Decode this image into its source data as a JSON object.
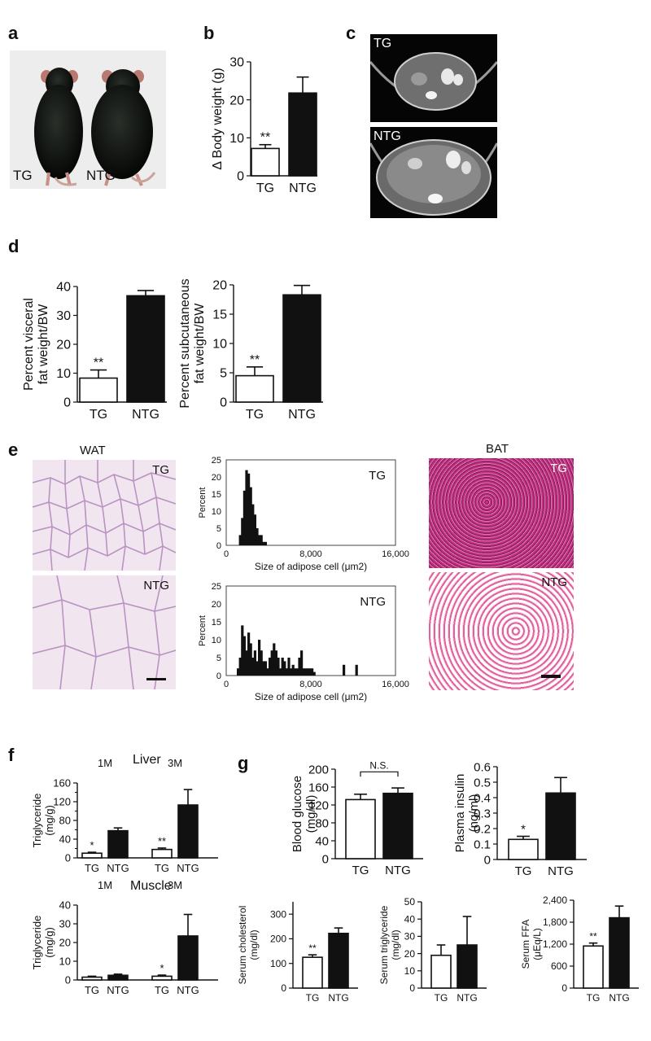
{
  "panels": {
    "a": {
      "letter": "a",
      "label_tg": "TG",
      "label_ntg": "NTG"
    },
    "b": {
      "letter": "b"
    },
    "c": {
      "letter": "c",
      "label_tg": "TG",
      "label_ntg": "NTG"
    },
    "d": {
      "letter": "d"
    },
    "e": {
      "letter": "e",
      "wat_title": "WAT",
      "bat_title": "BAT",
      "tg": "TG",
      "ntg": "NTG"
    },
    "f": {
      "letter": "f",
      "liver_title": "Liver",
      "muscle_title": "Muscle",
      "month1": "1M",
      "month3": "3M"
    },
    "g": {
      "letter": "g"
    }
  },
  "colors": {
    "filled": "#111111",
    "open": "#ffffff",
    "wat_bg": "#f1e6ef",
    "wat_line": "#b993c2",
    "bat_bg": "#c22d7e",
    "bat_ntg_bg": "#e2609e"
  },
  "chart_data": [
    {
      "id": "b",
      "type": "bar",
      "categories": [
        "TG",
        "NTG"
      ],
      "values": [
        7.2,
        21.8
      ],
      "errors": [
        1.0,
        4.2
      ],
      "sig": [
        "**",
        ""
      ],
      "ylabel": "Δ Body weight (g)",
      "ylim": [
        0,
        30
      ],
      "yticks": [
        "0",
        "10",
        "20",
        "30"
      ]
    },
    {
      "id": "d1",
      "type": "bar",
      "categories": [
        "TG",
        "NTG"
      ],
      "values": [
        8.3,
        36.8
      ],
      "errors": [
        2.8,
        1.8
      ],
      "sig": [
        "**",
        ""
      ],
      "ylabel": "Percent visceral fat weight/BW",
      "ylim": [
        0,
        40
      ],
      "yticks": [
        "0",
        "10",
        "20",
        "30",
        "40"
      ]
    },
    {
      "id": "d2",
      "type": "bar",
      "categories": [
        "TG",
        "NTG"
      ],
      "values": [
        4.5,
        18.3
      ],
      "errors": [
        1.5,
        1.6
      ],
      "sig": [
        "**",
        ""
      ],
      "ylabel": "Percent subcutaneous fat weight/BW",
      "ylim": [
        0,
        20
      ],
      "yticks": [
        "0",
        "5",
        "10",
        "15",
        "20"
      ]
    },
    {
      "id": "e1",
      "type": "bar",
      "name": "TG",
      "x": [
        1200,
        1400,
        1600,
        1800,
        2000,
        2200,
        2400,
        2600,
        2800,
        3000,
        3200,
        3400,
        3600
      ],
      "values": [
        3,
        8,
        16,
        22,
        21,
        17,
        12,
        9,
        5,
        3,
        3,
        1,
        1
      ],
      "xlabel": "Size of adipose cell (μm2)",
      "ylabel": "Percent",
      "xlim": [
        0,
        16000
      ],
      "ylim": [
        0,
        25
      ],
      "xticks": [
        "0",
        "8,000",
        "16,000"
      ],
      "yticks": [
        "0",
        "5",
        "10",
        "15",
        "20",
        "25"
      ]
    },
    {
      "id": "e2",
      "type": "bar",
      "name": "NTG",
      "x": [
        1000,
        1200,
        1400,
        1600,
        1800,
        2000,
        2200,
        2400,
        2600,
        2800,
        3000,
        3200,
        3400,
        3600,
        3800,
        4000,
        4200,
        4400,
        4600,
        4800,
        5000,
        5200,
        5400,
        5600,
        5800,
        6000,
        6200,
        6400,
        6600,
        6800,
        7000,
        7200,
        7400,
        7600,
        7800,
        8000,
        8200,
        11000,
        12200
      ],
      "values": [
        2,
        5,
        14,
        11,
        7,
        12,
        9,
        5,
        7,
        4,
        10,
        7,
        4,
        4,
        2,
        5,
        7,
        9,
        7,
        5,
        2,
        5,
        4,
        2,
        5,
        2,
        3,
        2,
        2,
        5,
        7,
        2,
        2,
        2,
        2,
        2,
        1,
        3,
        3
      ],
      "xlabel": "Size of adipose cell (μm2)",
      "ylabel": "Percent",
      "xlim": [
        0,
        16000
      ],
      "ylim": [
        0,
        25
      ],
      "xticks": [
        "0",
        "8,000",
        "16,000"
      ],
      "yticks": [
        "0",
        "5",
        "10",
        "15",
        "20",
        "25"
      ]
    },
    {
      "id": "f1",
      "type": "bar",
      "categories": [
        "TG",
        "NTG",
        "TG",
        "NTG"
      ],
      "groups": [
        "1M",
        "1M",
        "3M",
        "3M"
      ],
      "values": [
        10,
        58,
        18,
        113
      ],
      "errors": [
        2,
        6,
        3,
        33
      ],
      "sig": [
        "*",
        "",
        "**",
        ""
      ],
      "ylabel": "Triglyceride (mg/g)",
      "ylim": [
        0,
        160
      ],
      "yticks": [
        "0",
        "40",
        "80",
        "120",
        "160"
      ],
      "yticks_minor": [
        "20",
        "60",
        "100",
        "140"
      ]
    },
    {
      "id": "f2",
      "type": "bar",
      "categories": [
        "TG",
        "NTG",
        "TG",
        "NTG"
      ],
      "groups": [
        "1M",
        "1M",
        "3M",
        "3M"
      ],
      "values": [
        1.5,
        2.5,
        2,
        23.5
      ],
      "errors": [
        0.5,
        0.6,
        0.6,
        11.5
      ],
      "sig": [
        "",
        "",
        "*",
        ""
      ],
      "ylabel": "Triglyceride (mg/g)",
      "ylim": [
        0,
        40
      ],
      "yticks": [
        "0",
        "10",
        "20",
        "30",
        "40"
      ]
    },
    {
      "id": "g1",
      "type": "bar",
      "categories": [
        "TG",
        "NTG"
      ],
      "values": [
        132,
        146
      ],
      "errors": [
        12,
        12
      ],
      "sig": [
        "",
        ""
      ],
      "bracket": "N.S.",
      "ylabel": "Blood glucose (mg/dl)",
      "ylim": [
        0,
        200
      ],
      "yticks": [
        "0",
        "40",
        "80",
        "120",
        "160",
        "200"
      ]
    },
    {
      "id": "g2",
      "type": "bar",
      "categories": [
        "TG",
        "NTG"
      ],
      "values": [
        0.13,
        0.43
      ],
      "errors": [
        0.02,
        0.1
      ],
      "sig": [
        "*",
        ""
      ],
      "ylabel": "Plasma insulin (ng/ml)",
      "ylim": [
        0,
        0.6
      ],
      "yticks": [
        "0",
        "0.1",
        "0.2",
        "0.3",
        "0.4",
        "0.5",
        "0.6"
      ]
    },
    {
      "id": "g3",
      "type": "bar",
      "categories": [
        "TG",
        "NTG"
      ],
      "values": [
        125,
        222
      ],
      "errors": [
        10,
        22
      ],
      "sig": [
        "**",
        ""
      ],
      "ylabel": "Serum cholesterol (mg/dl)",
      "ylim": [
        0,
        350
      ],
      "yticks": [
        "0",
        "100",
        "200",
        "300"
      ]
    },
    {
      "id": "g4",
      "type": "bar",
      "categories": [
        "TG",
        "NTG"
      ],
      "values": [
        19,
        25
      ],
      "errors": [
        6,
        16.5
      ],
      "sig": [
        "",
        ""
      ],
      "ylabel": "Serum triglyceride (mg/dl)",
      "ylim": [
        0,
        50
      ],
      "yticks": [
        "0",
        "10",
        "20",
        "30",
        "40",
        "50"
      ]
    },
    {
      "id": "g5",
      "type": "bar",
      "categories": [
        "TG",
        "NTG"
      ],
      "values": [
        1150,
        1920
      ],
      "errors": [
        80,
        320
      ],
      "sig": [
        "**",
        ""
      ],
      "ylabel": "Serum FFA (μEq/L)",
      "ylim": [
        0,
        2400
      ],
      "yticks": [
        "0",
        "600",
        "1,200",
        "1,800",
        "2,400"
      ]
    }
  ]
}
